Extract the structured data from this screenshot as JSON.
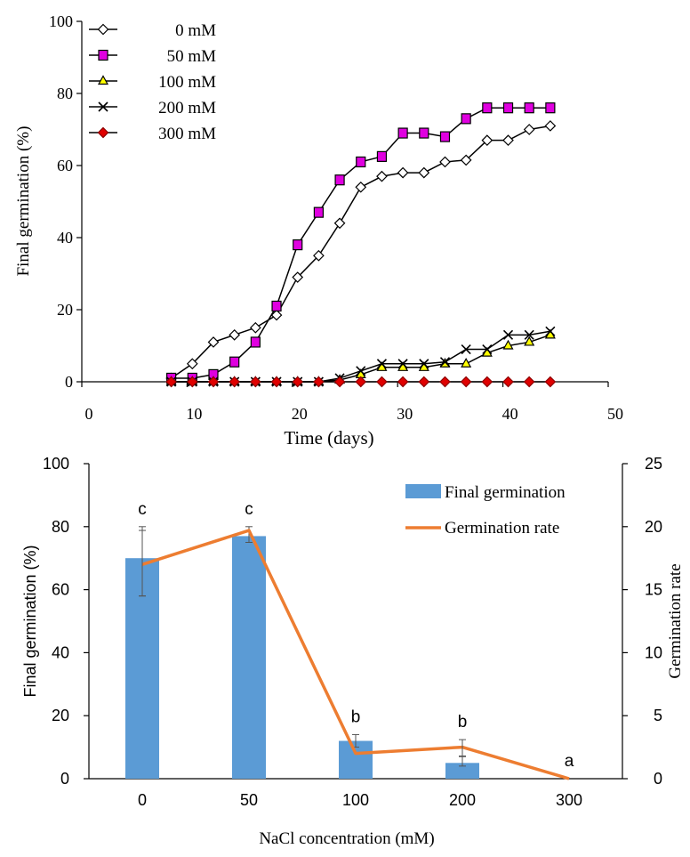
{
  "chart_data": [
    {
      "type": "line",
      "title": "",
      "xlabel": "Time (days)",
      "ylabel": "Final germination (%)",
      "xlim": [
        0,
        50
      ],
      "ylim": [
        0,
        100
      ],
      "x_ticks": [
        "0",
        "10",
        "20",
        "30",
        "40",
        "50"
      ],
      "y_ticks": [
        "0",
        "20",
        "40",
        "60",
        "80",
        "100"
      ],
      "grid": false,
      "legend_position": "top-left",
      "x": [
        8.5,
        10.5,
        12.5,
        14.5,
        16.5,
        18.5,
        20.5,
        22.5,
        24.5,
        26.5,
        28.5,
        30.5,
        32.5,
        34.5,
        36.5,
        38.5,
        40.5,
        42.5,
        44.5
      ],
      "series": [
        {
          "name": "0 mM",
          "marker": "diamond-open",
          "color": "#000000",
          "values": [
            1,
            5,
            11,
            13,
            15,
            18.5,
            29,
            35,
            44,
            54,
            57,
            58,
            58,
            61,
            61.5,
            67,
            67,
            70,
            71
          ]
        },
        {
          "name": "50 mM",
          "marker": "square",
          "color": "#e000e0",
          "values": [
            1,
            1,
            2,
            5.5,
            11,
            21,
            38,
            47,
            56,
            61,
            62.5,
            69,
            69,
            68,
            73,
            76,
            76,
            76,
            76
          ]
        },
        {
          "name": "100 mM",
          "marker": "triangle",
          "color": "#ffff00",
          "values": [
            0,
            0,
            0,
            0,
            0,
            0,
            0,
            0,
            0.5,
            2,
            4,
            4,
            4,
            5,
            5,
            8,
            10,
            11,
            13
          ]
        },
        {
          "name": "200 mM",
          "marker": "cross",
          "color": "#000000",
          "values": [
            0,
            0,
            0,
            0,
            0,
            0,
            0,
            0,
            1,
            3,
            5,
            5,
            5,
            5.5,
            9,
            9,
            13,
            13,
            14
          ]
        },
        {
          "name": "300 mM",
          "marker": "diamond-filled",
          "color": "#e00000",
          "values": [
            0,
            0,
            0,
            0,
            0,
            0,
            0,
            0,
            0,
            0,
            0,
            0,
            0,
            0,
            0,
            0,
            0,
            0,
            0
          ]
        }
      ]
    },
    {
      "type": "bar",
      "title": "",
      "xlabel": "NaCl concentration (mM)",
      "ylabel": "Final germination (%)",
      "y2label": "Germination rate",
      "categories": [
        "0",
        "50",
        "100",
        "200",
        "300"
      ],
      "ylim": [
        0,
        100
      ],
      "y2lim": [
        0,
        25
      ],
      "y_ticks": [
        "0",
        "20",
        "40",
        "60",
        "80",
        "100"
      ],
      "y2_ticks": [
        "0",
        "5",
        "10",
        "15",
        "20",
        "25"
      ],
      "grid": false,
      "legend_position": "top-right",
      "series": [
        {
          "name": "Final germination",
          "kind": "bar",
          "color": "#5b9bd5",
          "axis": "left",
          "values": [
            70,
            77,
            12,
            5,
            0
          ],
          "error_low": [
            58,
            75,
            10,
            4,
            0
          ],
          "error_high": [
            80,
            80,
            14,
            7,
            0
          ]
        },
        {
          "name": "Germination rate",
          "kind": "line",
          "color": "#ed7d31",
          "axis": "right",
          "values": [
            17,
            19.7,
            2,
            2.5,
            0
          ],
          "error_low": [
            14.5,
            0,
            0,
            1.8,
            0
          ],
          "error_high": [
            19.7,
            0,
            0,
            3.1,
            0
          ]
        }
      ],
      "annotations": [
        "c",
        "c",
        "b",
        "b",
        "a"
      ]
    }
  ]
}
